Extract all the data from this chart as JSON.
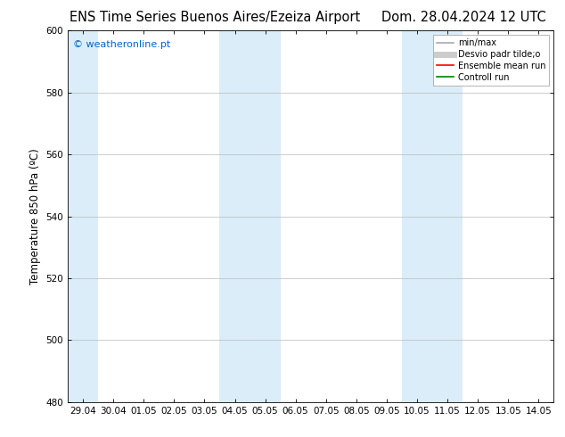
{
  "title_left": "ENS Time Series Buenos Aires/Ezeiza Airport",
  "title_right": "Dom. 28.04.2024 12 UTC",
  "ylabel": "Temperature 850 hPa (ºC)",
  "ylim": [
    480,
    600
  ],
  "yticks": [
    480,
    500,
    520,
    540,
    560,
    580,
    600
  ],
  "xlabel_ticks": [
    "29.04",
    "30.04",
    "01.05",
    "02.05",
    "03.05",
    "04.05",
    "05.05",
    "06.05",
    "07.05",
    "08.05",
    "09.05",
    "10.05",
    "11.05",
    "12.05",
    "13.05",
    "14.05"
  ],
  "n_ticks": 16,
  "xlim_min": -0.5,
  "xlim_max": 15.5,
  "shaded_bands": [
    {
      "x_start": -0.5,
      "x_end": 0.5,
      "color": "#daedf8"
    },
    {
      "x_start": 4.5,
      "x_end": 6.5,
      "color": "#daedf8"
    },
    {
      "x_start": 10.5,
      "x_end": 12.5,
      "color": "#daedf8"
    }
  ],
  "watermark_text": "© weatheronline.pt",
  "watermark_color": "#0066cc",
  "legend_entries": [
    {
      "label": "min/max",
      "color": "#aaaaaa",
      "lw": 1.2,
      "style": "-"
    },
    {
      "label": "Desvio padr tilde;o",
      "color": "#cccccc",
      "lw": 5,
      "style": "-"
    },
    {
      "label": "Ensemble mean run",
      "color": "red",
      "lw": 1.2,
      "style": "-"
    },
    {
      "label": "Controll run",
      "color": "green",
      "lw": 1.2,
      "style": "-"
    }
  ],
  "background_color": "#ffffff",
  "plot_bg_color": "#ffffff",
  "grid_color": "#bbbbbb",
  "title_fontsize": 10.5,
  "axis_fontsize": 8.5,
  "tick_fontsize": 7.5,
  "watermark_fontsize": 8
}
